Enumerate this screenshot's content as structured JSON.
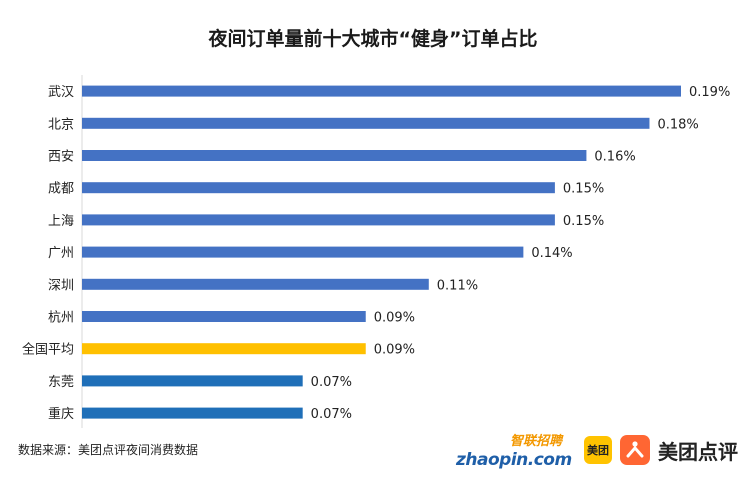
{
  "chart_data": {
    "type": "bar",
    "orientation": "horizontal",
    "title": "夜间订单量前十大城市“健身”订单占比",
    "categories": [
      "武汉",
      "北京",
      "西安",
      "成都",
      "上海",
      "广州",
      "深圳",
      "杭州",
      "全国平均",
      "东莞",
      "重庆"
    ],
    "values": [
      0.19,
      0.18,
      0.16,
      0.15,
      0.15,
      0.14,
      0.11,
      0.09,
      0.09,
      0.07,
      0.07
    ],
    "value_labels": [
      "0.19%",
      "0.18%",
      "0.16%",
      "0.15%",
      "0.15%",
      "0.14%",
      "0.11%",
      "0.09%",
      "0.09%",
      "0.07%",
      "0.07%"
    ],
    "bar_colors": [
      "#4472c4",
      "#4472c4",
      "#4472c4",
      "#4472c4",
      "#4472c4",
      "#4472c4",
      "#4472c4",
      "#4472c4",
      "#ffc000",
      "#1f6fb8",
      "#1f6fb8"
    ],
    "xlim": [
      0,
      0.19
    ],
    "grid": false,
    "legend": "none"
  },
  "footer": {
    "source": "数据来源：美团点评夜间消费数据",
    "zhaopin_cn": "智联招聘",
    "zhaopin_en": "zhaopin.com",
    "meituan_badge": "美团",
    "dianping_icon": "dianping-icon",
    "brand_name": "美团点评"
  }
}
